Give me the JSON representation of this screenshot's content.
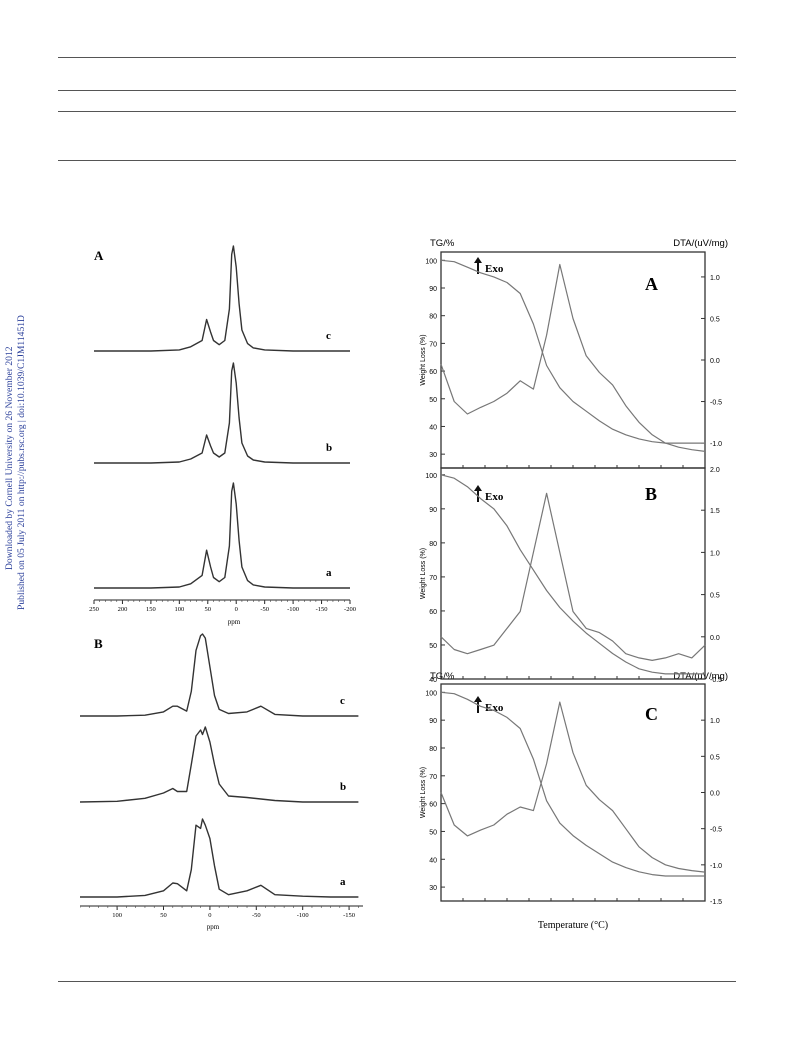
{
  "sidebar": {
    "line1": "Downloaded by Cornell University on 26 November 2012",
    "line2": "Published on 05 July 2011 on http://pubs.rsc.org | doi:10.1039/C1JM11451D"
  },
  "nmr": {
    "panelA": {
      "label": "A",
      "xlabel": "ppm",
      "xticks": [
        "250",
        "200",
        "150",
        "100",
        "50",
        "0",
        "-50",
        "-100",
        "-150",
        "-200"
      ],
      "traces": [
        "c",
        "b",
        "a"
      ]
    },
    "panelB": {
      "label": "B",
      "xlabel": "ppm",
      "xticks": [
        "100",
        "50",
        "0",
        "-50",
        "-100",
        "-150"
      ],
      "traces": [
        "c",
        "b",
        "a"
      ]
    }
  },
  "thermal": {
    "tg_title": "TG/%",
    "dta_title": "DTA/(uV/mg)",
    "ylabel": "Weight Loss (%)",
    "xlabel": "Temperature (°C)",
    "exo": "Exo",
    "panels": [
      {
        "label": "A",
        "left_ticks": [
          "100",
          "90",
          "80",
          "70",
          "60",
          "50",
          "40",
          "30"
        ],
        "right_ticks": [
          "1.0",
          "0.5",
          "0.0",
          "-0.5",
          "-1.0"
        ]
      },
      {
        "label": "B",
        "left_ticks": [
          "100",
          "90",
          "80",
          "70",
          "60",
          "50",
          "40"
        ],
        "right_ticks": [
          "1.5",
          "1.0",
          "0.5",
          "0.0",
          "-0.5"
        ],
        "right_top": "2.0"
      },
      {
        "label": "C",
        "left_ticks": [
          "100",
          "90",
          "80",
          "70",
          "60",
          "50",
          "40",
          "30"
        ],
        "right_ticks": [
          "1.0",
          "0.5",
          "0.0",
          "-0.5",
          "-1.0",
          "-1.5"
        ]
      }
    ]
  },
  "chart_data": [
    {
      "type": "line",
      "title": "A",
      "xlabel": "ppm",
      "xlim": [
        250,
        -200
      ],
      "series": [
        {
          "name": "c",
          "x": [
            250,
            200,
            150,
            100,
            80,
            60,
            52,
            45,
            40,
            30,
            20,
            12,
            8,
            5,
            0,
            -5,
            -10,
            -20,
            -30,
            -50,
            -100,
            -150,
            -200
          ],
          "y": [
            0,
            0,
            0,
            0.01,
            0.04,
            0.1,
            0.3,
            0.18,
            0.1,
            0.06,
            0.1,
            0.4,
            0.92,
            1.0,
            0.8,
            0.45,
            0.2,
            0.07,
            0.03,
            0.01,
            0,
            0,
            0
          ]
        },
        {
          "name": "b",
          "x": [
            250,
            200,
            150,
            100,
            80,
            60,
            52,
            45,
            40,
            30,
            20,
            12,
            8,
            5,
            0,
            -5,
            -10,
            -20,
            -30,
            -50,
            -100,
            -150,
            -200
          ],
          "y": [
            0,
            0,
            0,
            0.01,
            0.04,
            0.1,
            0.28,
            0.17,
            0.1,
            0.06,
            0.1,
            0.4,
            0.92,
            1.0,
            0.8,
            0.45,
            0.2,
            0.07,
            0.03,
            0.01,
            0,
            0,
            0
          ]
        },
        {
          "name": "a",
          "x": [
            250,
            200,
            150,
            100,
            80,
            60,
            52,
            45,
            40,
            30,
            20,
            12,
            8,
            5,
            0,
            -5,
            -10,
            -20,
            -30,
            -50,
            -100,
            -150,
            -200
          ],
          "y": [
            0,
            0,
            0,
            0.01,
            0.04,
            0.12,
            0.36,
            0.2,
            0.1,
            0.06,
            0.1,
            0.4,
            0.92,
            1.0,
            0.8,
            0.45,
            0.2,
            0.07,
            0.03,
            0.01,
            0,
            0,
            0
          ]
        }
      ]
    },
    {
      "type": "line",
      "title": "B",
      "xlabel": "ppm",
      "xlim": [
        140,
        -165
      ],
      "series": [
        {
          "name": "c",
          "x": [
            140,
            100,
            70,
            50,
            40,
            35,
            25,
            20,
            15,
            10,
            8,
            5,
            0,
            -5,
            -10,
            -20,
            -40,
            -55,
            -70,
            -100,
            -130,
            -160
          ],
          "y": [
            0,
            0,
            0.01,
            0.05,
            0.12,
            0.12,
            0.06,
            0.3,
            0.8,
            0.98,
            1.0,
            0.95,
            0.6,
            0.25,
            0.08,
            0.03,
            0.05,
            0.12,
            0.02,
            0,
            0,
            0
          ]
        },
        {
          "name": "b",
          "x": [
            140,
            100,
            70,
            50,
            40,
            35,
            25,
            20,
            15,
            10,
            8,
            5,
            0,
            -5,
            -10,
            -20,
            -40,
            -55,
            -70,
            -100,
            -130,
            -160
          ],
          "y": [
            0,
            0.01,
            0.05,
            0.12,
            0.18,
            0.14,
            0.14,
            0.5,
            0.88,
            0.96,
            0.9,
            1.0,
            0.8,
            0.5,
            0.24,
            0.08,
            0.06,
            0.04,
            0.02,
            0,
            0,
            0
          ]
        },
        {
          "name": "a",
          "x": [
            140,
            100,
            70,
            50,
            40,
            35,
            25,
            20,
            15,
            10,
            8,
            5,
            0,
            -5,
            -10,
            -20,
            -40,
            -55,
            -70,
            -100,
            -130,
            -160
          ],
          "y": [
            0,
            0,
            0.02,
            0.08,
            0.18,
            0.17,
            0.08,
            0.35,
            0.92,
            0.88,
            1.0,
            0.92,
            0.75,
            0.4,
            0.1,
            0.03,
            0.08,
            0.15,
            0.03,
            0.01,
            0,
            0
          ]
        }
      ]
    },
    {
      "type": "line",
      "title": "A",
      "xlabel": "Temperature (°C)",
      "ylabel": "Weight Loss (%)",
      "ylim": [
        25,
        103
      ],
      "y2lim": [
        -1.3,
        1.3
      ],
      "x": [
        0,
        5,
        10,
        15,
        20,
        25,
        30,
        35,
        40,
        45,
        50,
        55,
        60,
        65,
        70,
        75,
        80,
        85,
        90,
        95,
        100
      ],
      "series": [
        {
          "name": "TG/%",
          "axis": "left",
          "y": [
            100,
            99.5,
            97.5,
            95.5,
            94,
            92,
            88,
            77,
            62,
            54,
            49,
            45.5,
            42,
            39,
            37,
            35.5,
            34.5,
            34,
            34,
            34,
            34
          ]
        },
        {
          "name": "DTA/(uV/mg)",
          "axis": "right",
          "y": [
            -0.05,
            -0.5,
            -0.65,
            -0.57,
            -0.5,
            -0.4,
            -0.25,
            -0.35,
            0.3,
            1.15,
            0.5,
            0.05,
            -0.15,
            -0.3,
            -0.55,
            -0.75,
            -0.9,
            -1.0,
            -1.05,
            -1.08,
            -1.1
          ]
        }
      ]
    },
    {
      "type": "line",
      "title": "B",
      "xlabel": "Temperature (°C)",
      "ylabel": "Weight Loss (%)",
      "ylim": [
        40,
        102
      ],
      "y2lim": [
        -0.5,
        2.0
      ],
      "x": [
        0,
        5,
        10,
        15,
        20,
        25,
        30,
        35,
        40,
        45,
        50,
        55,
        60,
        65,
        70,
        75,
        80,
        85,
        90,
        95,
        100
      ],
      "series": [
        {
          "name": "TG/%",
          "axis": "left",
          "y": [
            100,
            99,
            96.5,
            93,
            90,
            85,
            78,
            72,
            66,
            61,
            57,
            53.5,
            50.5,
            47.5,
            45,
            43,
            42,
            41.5,
            41.5,
            41.5,
            41.5
          ]
        },
        {
          "name": "DTA/(uV/mg)",
          "axis": "right",
          "y": [
            0.0,
            -0.15,
            -0.2,
            -0.15,
            -0.1,
            0.1,
            0.3,
            1.0,
            1.7,
            1.0,
            0.3,
            0.1,
            0.05,
            -0.05,
            -0.2,
            -0.25,
            -0.28,
            -0.25,
            -0.2,
            -0.25,
            -0.1
          ]
        }
      ]
    },
    {
      "type": "line",
      "title": "C",
      "xlabel": "Temperature (°C)",
      "ylabel": "Weight Loss (%)",
      "ylim": [
        25,
        103
      ],
      "y2lim": [
        -1.5,
        1.5
      ],
      "x": [
        0,
        5,
        10,
        15,
        20,
        25,
        30,
        35,
        40,
        45,
        50,
        55,
        60,
        65,
        70,
        75,
        80,
        85,
        90,
        95,
        100
      ],
      "series": [
        {
          "name": "TG/%",
          "axis": "left",
          "y": [
            100,
            99.5,
            97.5,
            95,
            93.5,
            91,
            87,
            76,
            61,
            53,
            48.5,
            45,
            42,
            39,
            37,
            35.5,
            34.5,
            34,
            34,
            34,
            34
          ]
        },
        {
          "name": "DTA/(uV/mg)",
          "axis": "right",
          "y": [
            0.0,
            -0.45,
            -0.6,
            -0.52,
            -0.45,
            -0.3,
            -0.2,
            -0.25,
            0.4,
            1.25,
            0.55,
            0.1,
            -0.1,
            -0.25,
            -0.5,
            -0.75,
            -0.9,
            -1.0,
            -1.05,
            -1.08,
            -1.1
          ]
        }
      ]
    }
  ]
}
